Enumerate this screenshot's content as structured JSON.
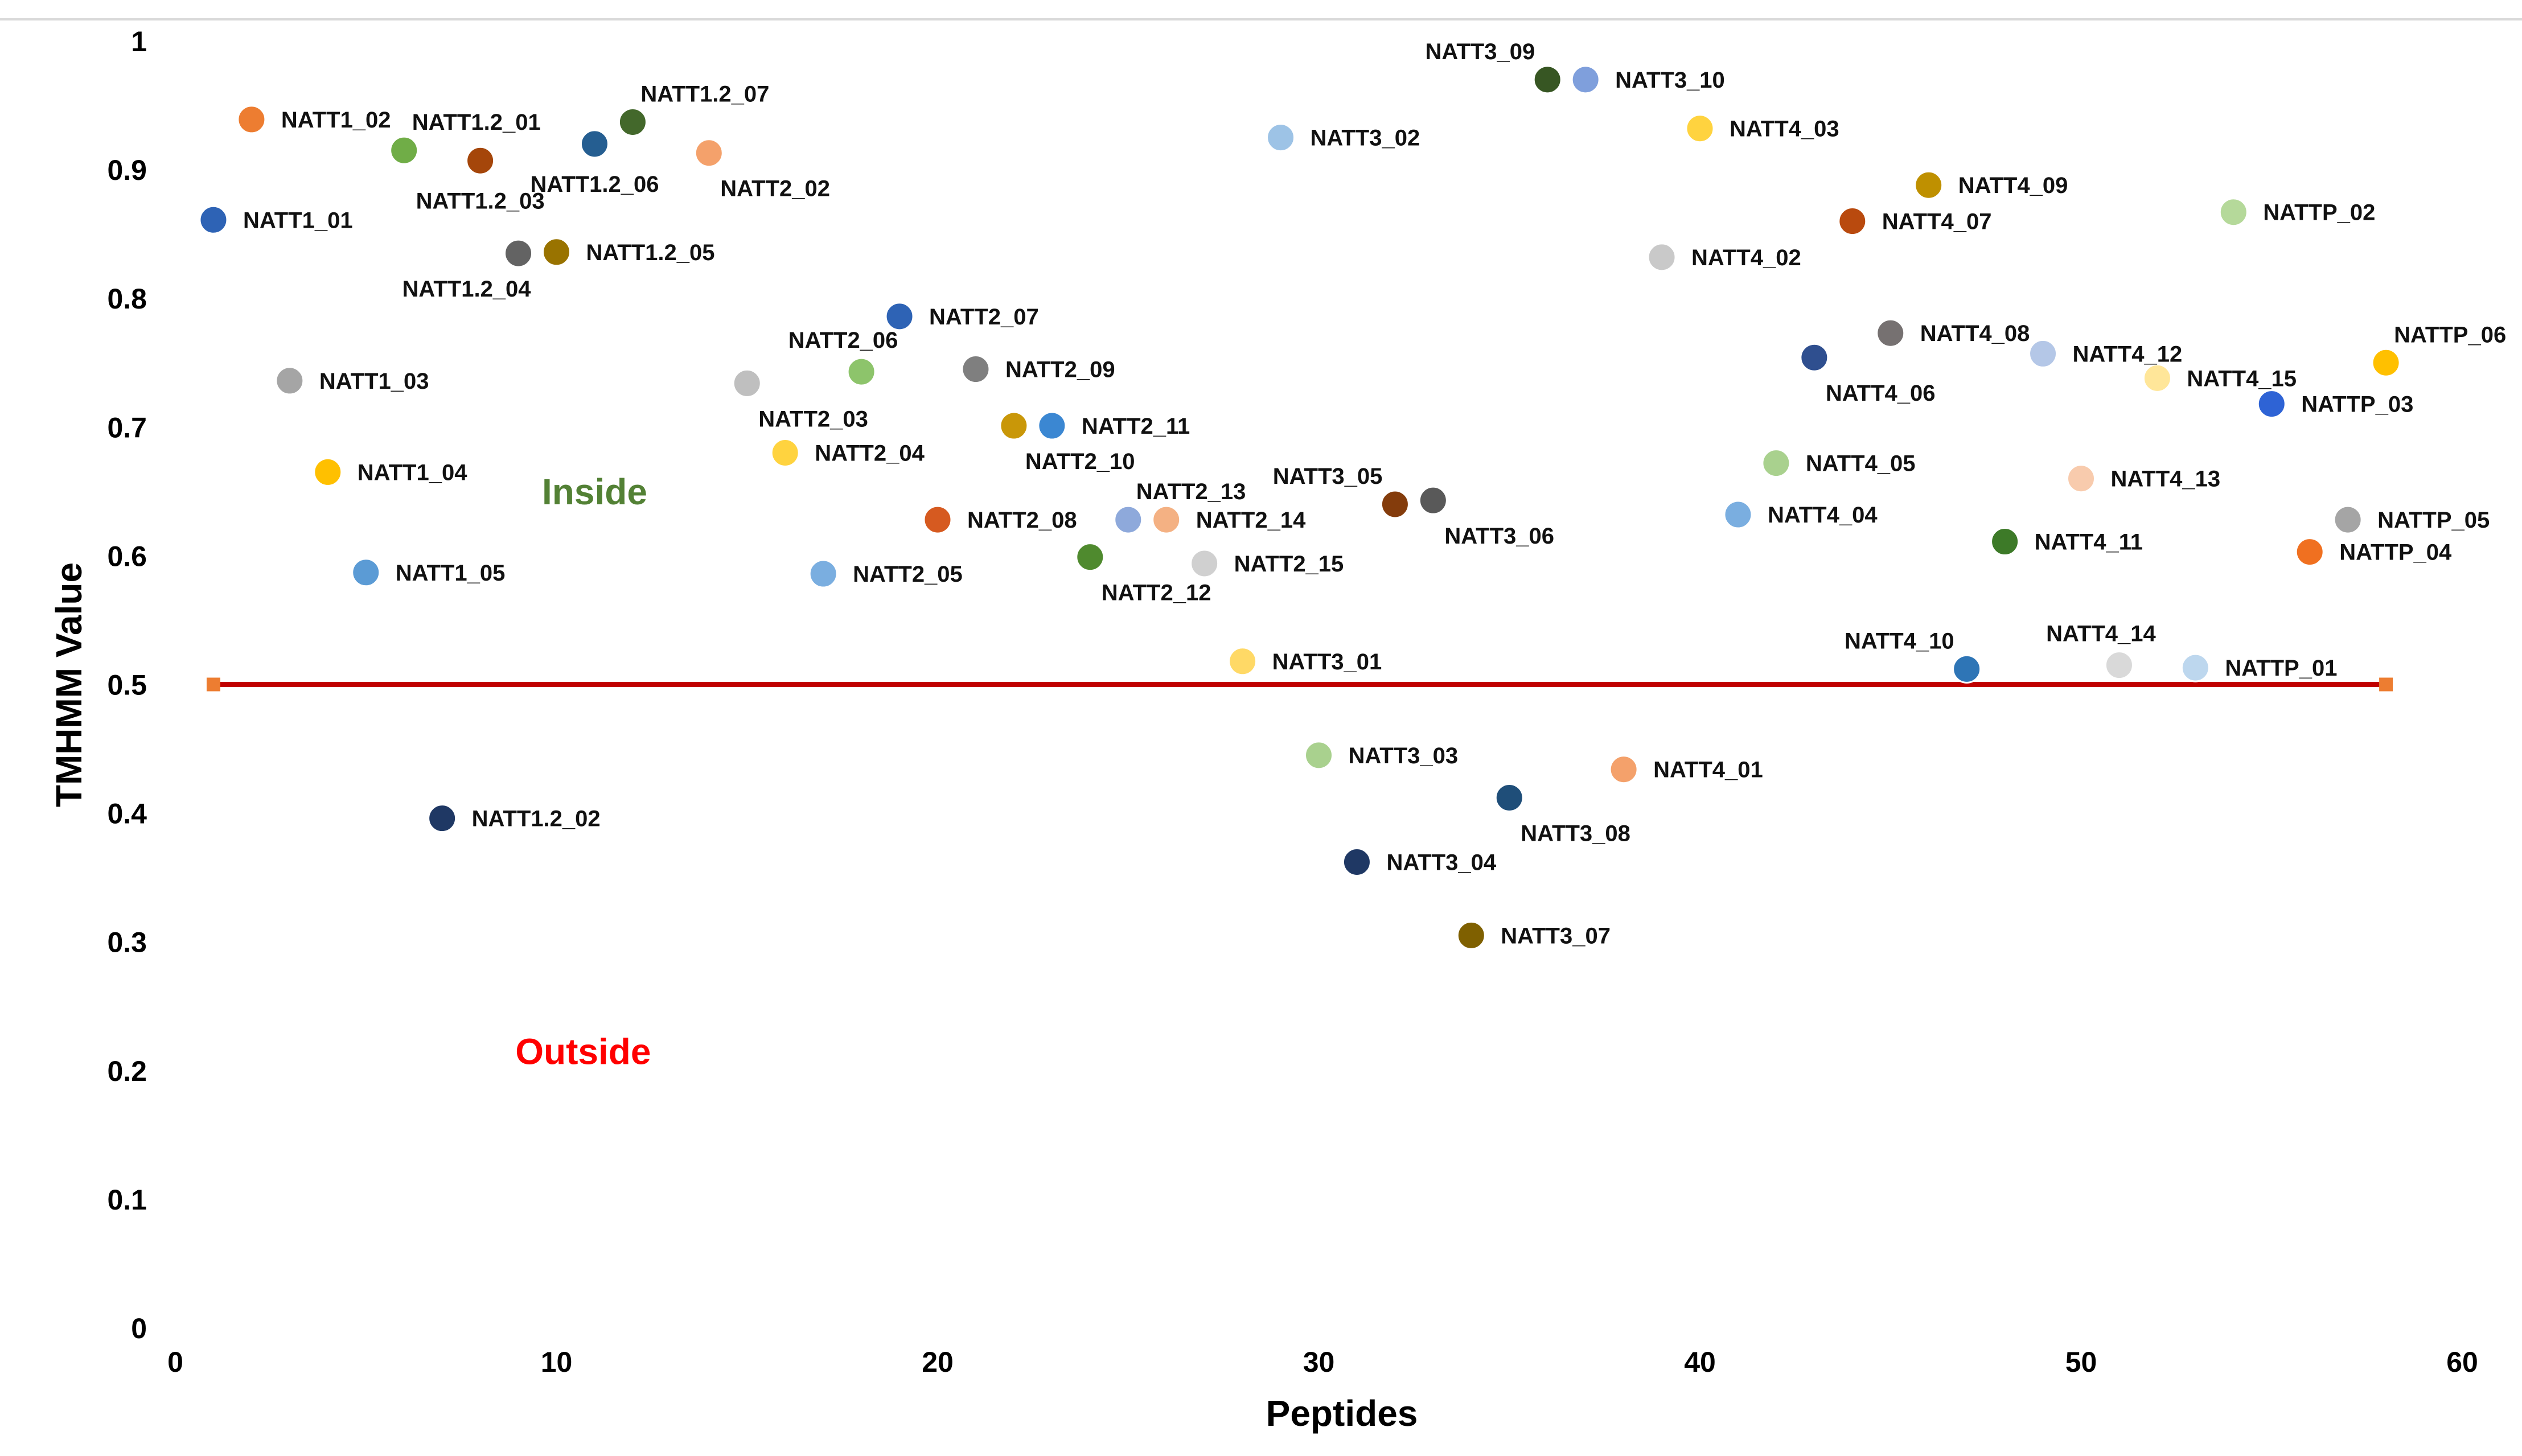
{
  "chart_data": {
    "type": "scatter",
    "title": "",
    "xlabel": "Peptides",
    "ylabel": "TMHMM Value",
    "xlim": [
      0,
      60
    ],
    "ylim": [
      0,
      1
    ],
    "xticks": [
      0,
      10,
      20,
      30,
      40,
      50,
      60
    ],
    "yticks": [
      "0",
      "0.1",
      "0.2",
      "0.3",
      "0.4",
      "0.5",
      "0.6",
      "0.7",
      "0.8",
      "0.9",
      "1"
    ],
    "grid": false,
    "threshold": {
      "y": 0.5,
      "x_start": 1,
      "x_end": 58,
      "color": "#c00000",
      "marker_color": "#ed7d31"
    },
    "annotations": [
      {
        "text": "Inside",
        "x": 11,
        "y": 0.64,
        "color": "#538135"
      },
      {
        "text": "Outside",
        "x": 10.7,
        "y": 0.205,
        "color": "#ff0000"
      }
    ],
    "points": [
      {
        "name": "NATT1_01",
        "x": 1,
        "y": 0.861,
        "color": "#2e63b5",
        "pos": "r"
      },
      {
        "name": "NATT1_02",
        "x": 2,
        "y": 0.939,
        "color": "#ed7d31",
        "pos": "r"
      },
      {
        "name": "NATT1_03",
        "x": 3,
        "y": 0.736,
        "color": "#a5a5a5",
        "pos": "r"
      },
      {
        "name": "NATT1_04",
        "x": 4,
        "y": 0.665,
        "color": "#ffc000",
        "pos": "r"
      },
      {
        "name": "NATT1_05",
        "x": 5,
        "y": 0.587,
        "color": "#5b9bd5",
        "pos": "r"
      },
      {
        "name": "NATT1.2_01",
        "x": 6,
        "y": 0.915,
        "color": "#70ad47",
        "pos": "tr"
      },
      {
        "name": "NATT1.2_02",
        "x": 7,
        "y": 0.396,
        "color": "#1f3864",
        "pos": "r"
      },
      {
        "name": "NATT1.2_03",
        "x": 8,
        "y": 0.907,
        "color": "#a5460a",
        "pos": "b"
      },
      {
        "name": "NATT1.2_04",
        "x": 9,
        "y": 0.835,
        "color": "#636363",
        "pos": "bl"
      },
      {
        "name": "NATT1.2_05",
        "x": 10,
        "y": 0.836,
        "color": "#997300",
        "pos": "r"
      },
      {
        "name": "NATT1.2_06",
        "x": 11,
        "y": 0.92,
        "color": "#255e91",
        "pos": "b"
      },
      {
        "name": "NATT1.2_07",
        "x": 12,
        "y": 0.937,
        "color": "#43682b",
        "pos": "tr"
      },
      {
        "name": "NATT2_02",
        "x": 14,
        "y": 0.913,
        "color": "#f4a16b",
        "pos": "br"
      },
      {
        "name": "NATT2_03",
        "x": 15,
        "y": 0.734,
        "color": "#bfbfbf",
        "pos": "br"
      },
      {
        "name": "NATT2_04",
        "x": 16,
        "y": 0.68,
        "color": "#ffd33f",
        "pos": "r"
      },
      {
        "name": "NATT2_05",
        "x": 17,
        "y": 0.586,
        "color": "#7aaee0",
        "pos": "r"
      },
      {
        "name": "NATT2_06",
        "x": 18,
        "y": 0.743,
        "color": "#8dc46b",
        "pos": "t"
      },
      {
        "name": "NATT2_07",
        "x": 19,
        "y": 0.786,
        "color": "#2e63b5",
        "pos": "r"
      },
      {
        "name": "NATT2_08",
        "x": 20,
        "y": 0.628,
        "color": "#d65a20",
        "pos": "r"
      },
      {
        "name": "NATT2_09",
        "x": 21,
        "y": 0.745,
        "color": "#7f7f7f",
        "pos": "r"
      },
      {
        "name": "NATT2_10",
        "x": 22,
        "y": 0.701,
        "color": "#c99708",
        "pos": "br"
      },
      {
        "name": "NATT2_11",
        "x": 23,
        "y": 0.701,
        "color": "#3b87d2",
        "pos": "r"
      },
      {
        "name": "NATT2_12",
        "x": 24,
        "y": 0.599,
        "color": "#4f8a2e",
        "pos": "br"
      },
      {
        "name": "NATT2_13",
        "x": 25,
        "y": 0.628,
        "color": "#8ea9db",
        "pos": "tr"
      },
      {
        "name": "NATT2_14",
        "x": 26,
        "y": 0.628,
        "color": "#f4b183",
        "pos": "r"
      },
      {
        "name": "NATT2_15",
        "x": 27,
        "y": 0.594,
        "color": "#d0d0d0",
        "pos": "r"
      },
      {
        "name": "NATT3_01",
        "x": 28,
        "y": 0.518,
        "color": "#ffd966",
        "pos": "r"
      },
      {
        "name": "NATT3_02",
        "x": 29,
        "y": 0.925,
        "color": "#9dc3e6",
        "pos": "r"
      },
      {
        "name": "NATT3_03",
        "x": 30,
        "y": 0.445,
        "color": "#a9d18e",
        "pos": "r"
      },
      {
        "name": "NATT3_04",
        "x": 31,
        "y": 0.362,
        "color": "#1f3864",
        "pos": "r"
      },
      {
        "name": "NATT3_05",
        "x": 32,
        "y": 0.64,
        "color": "#843c0c",
        "pos": "tl"
      },
      {
        "name": "NATT3_06",
        "x": 33,
        "y": 0.643,
        "color": "#595959",
        "pos": "br"
      },
      {
        "name": "NATT3_07",
        "x": 34,
        "y": 0.305,
        "color": "#7f6000",
        "pos": "r"
      },
      {
        "name": "NATT3_08",
        "x": 35,
        "y": 0.412,
        "color": "#1f4e79",
        "pos": "br"
      },
      {
        "name": "NATT3_09",
        "x": 36,
        "y": 0.97,
        "color": "#375623",
        "pos": "tl"
      },
      {
        "name": "NATT3_10",
        "x": 37,
        "y": 0.97,
        "color": "#7f9fdc",
        "pos": "r"
      },
      {
        "name": "NATT4_01",
        "x": 38,
        "y": 0.434,
        "color": "#f4a16b",
        "pos": "r"
      },
      {
        "name": "NATT4_02",
        "x": 39,
        "y": 0.832,
        "color": "#c9c9c9",
        "pos": "r"
      },
      {
        "name": "NATT4_03",
        "x": 40,
        "y": 0.932,
        "color": "#ffd33f",
        "pos": "r"
      },
      {
        "name": "NATT4_04",
        "x": 41,
        "y": 0.632,
        "color": "#7aaee0",
        "pos": "r"
      },
      {
        "name": "NATT4_05",
        "x": 42,
        "y": 0.672,
        "color": "#a9d18e",
        "pos": "r"
      },
      {
        "name": "NATT4_06",
        "x": 43,
        "y": 0.754,
        "color": "#2f4f8f",
        "pos": "br"
      },
      {
        "name": "NATT4_07",
        "x": 44,
        "y": 0.86,
        "color": "#b94a0e",
        "pos": "r"
      },
      {
        "name": "NATT4_08",
        "x": 45,
        "y": 0.773,
        "color": "#767171",
        "pos": "r"
      },
      {
        "name": "NATT4_09",
        "x": 46,
        "y": 0.888,
        "color": "#bf9000",
        "pos": "r"
      },
      {
        "name": "NATT4_10",
        "x": 47,
        "y": 0.512,
        "color": "#2e75b6",
        "pos": "tl"
      },
      {
        "name": "NATT4_11",
        "x": 48,
        "y": 0.611,
        "color": "#3d7a28",
        "pos": "r"
      },
      {
        "name": "NATT4_12",
        "x": 49,
        "y": 0.757,
        "color": "#b4c7e7",
        "pos": "r"
      },
      {
        "name": "NATT4_13",
        "x": 50,
        "y": 0.66,
        "color": "#f8cbad",
        "pos": "r"
      },
      {
        "name": "NATT4_14",
        "x": 51,
        "y": 0.515,
        "color": "#d9d9d9",
        "pos": "t"
      },
      {
        "name": "NATT4_15",
        "x": 52,
        "y": 0.738,
        "color": "#ffe699",
        "pos": "r"
      },
      {
        "name": "NATTP_01",
        "x": 53,
        "y": 0.513,
        "color": "#bdd7ee",
        "pos": "r"
      },
      {
        "name": "NATTP_02",
        "x": 54,
        "y": 0.867,
        "color": "#b5d99a",
        "pos": "r"
      },
      {
        "name": "NATTP_03",
        "x": 55,
        "y": 0.718,
        "color": "#2e63d5",
        "pos": "r"
      },
      {
        "name": "NATTP_04",
        "x": 56,
        "y": 0.603,
        "color": "#f07020",
        "pos": "r"
      },
      {
        "name": "NATTP_05",
        "x": 57,
        "y": 0.628,
        "color": "#a5a5a5",
        "pos": "r"
      },
      {
        "name": "NATTP_06",
        "x": 58,
        "y": 0.75,
        "color": "#ffc000",
        "pos": "tr"
      }
    ]
  }
}
